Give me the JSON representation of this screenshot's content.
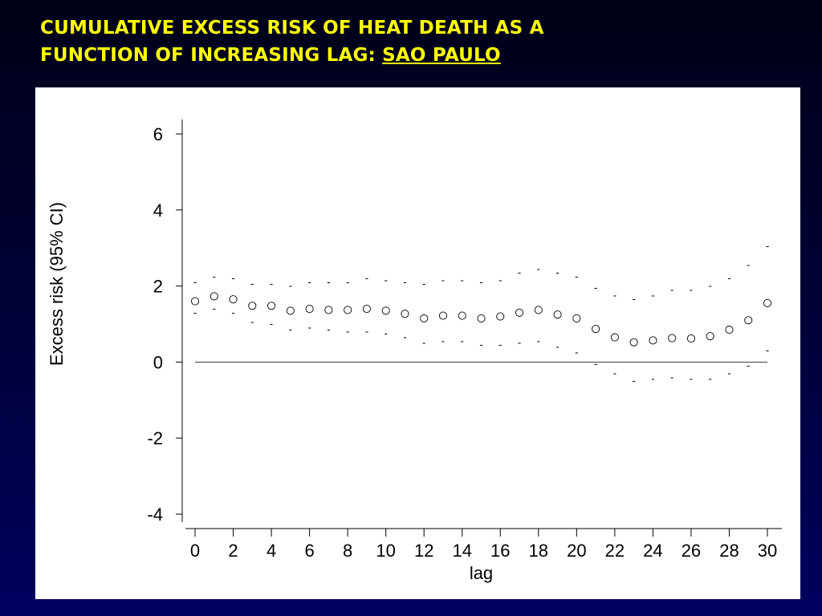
{
  "slide": {
    "title_line1": "CUMULATIVE EXCESS RISK OF HEAT DEATH AS A",
    "title_line2_prefix": "FUNCTION OF INCREASING LAG: ",
    "title_line2_city": "SAO PAULO"
  },
  "chart_data": {
    "type": "scatter",
    "xlabel": "lag",
    "ylabel": "Excess risk (95% CI)",
    "xlim": [
      0,
      30
    ],
    "ylim": [
      -4,
      6
    ],
    "xticks": [
      0,
      2,
      4,
      6,
      8,
      10,
      12,
      14,
      16,
      18,
      20,
      22,
      24,
      26,
      28,
      30
    ],
    "yticks": [
      -4,
      -2,
      0,
      2,
      4,
      6
    ],
    "reference_line_y": 0,
    "ci_marker": "-",
    "x": [
      0,
      1,
      2,
      3,
      4,
      5,
      6,
      7,
      8,
      9,
      10,
      11,
      12,
      13,
      14,
      15,
      16,
      17,
      18,
      19,
      20,
      21,
      22,
      23,
      24,
      25,
      26,
      27,
      28,
      29,
      30
    ],
    "estimate": [
      1.6,
      1.73,
      1.65,
      1.48,
      1.48,
      1.35,
      1.4,
      1.37,
      1.37,
      1.4,
      1.35,
      1.27,
      1.15,
      1.22,
      1.22,
      1.15,
      1.2,
      1.3,
      1.37,
      1.25,
      1.15,
      0.87,
      0.65,
      0.52,
      0.57,
      0.63,
      0.62,
      0.68,
      0.85,
      1.1,
      1.55
    ],
    "lower": [
      1.3,
      1.4,
      1.3,
      1.05,
      1.0,
      0.85,
      0.9,
      0.85,
      0.8,
      0.8,
      0.75,
      0.65,
      0.5,
      0.55,
      0.55,
      0.45,
      0.45,
      0.5,
      0.55,
      0.4,
      0.25,
      -0.05,
      -0.3,
      -0.5,
      -0.45,
      -0.4,
      -0.45,
      -0.45,
      -0.3,
      -0.1,
      0.3
    ],
    "upper": [
      2.1,
      2.25,
      2.2,
      2.05,
      2.05,
      2.0,
      2.1,
      2.1,
      2.1,
      2.2,
      2.15,
      2.1,
      2.05,
      2.15,
      2.15,
      2.1,
      2.15,
      2.35,
      2.45,
      2.35,
      2.25,
      1.95,
      1.75,
      1.65,
      1.75,
      1.9,
      1.9,
      2.0,
      2.2,
      2.55,
      3.05
    ]
  }
}
